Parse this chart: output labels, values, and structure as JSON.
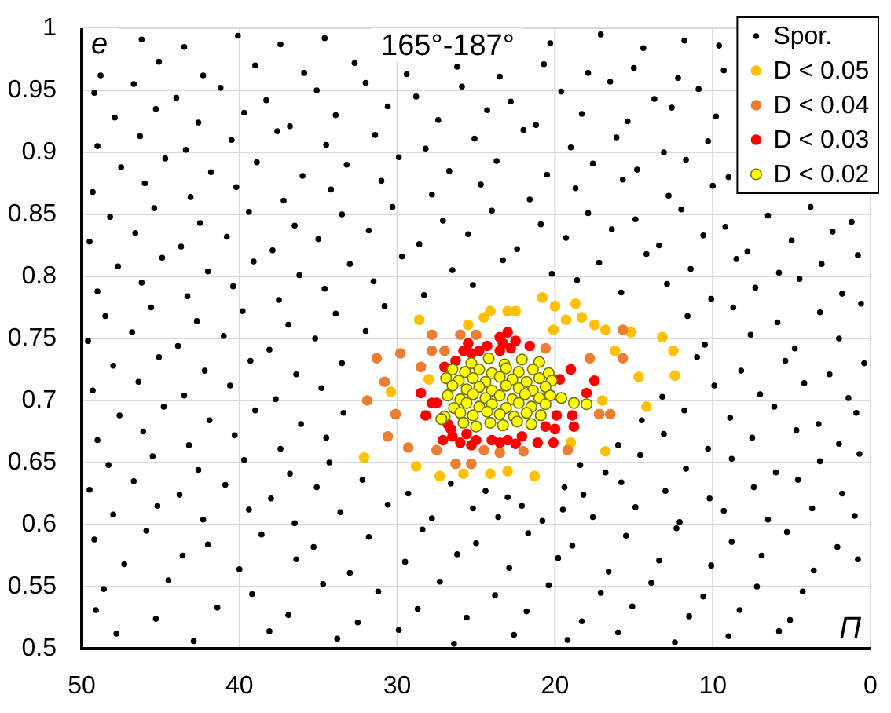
{
  "chart_data": {
    "type": "scatter",
    "title": "165°-187°",
    "xlabel": "Π",
    "ylabel": "e",
    "xlim": [
      50,
      0
    ],
    "xticks": [
      50,
      40,
      30,
      20,
      10,
      0
    ],
    "ylim": [
      0.5,
      1
    ],
    "yticks": [
      0.5,
      0.55,
      0.6,
      0.65,
      0.7,
      0.75,
      0.8,
      0.85,
      0.9,
      0.95,
      1
    ],
    "grid": true,
    "legend": "top right",
    "marker": "circle",
    "series": [
      {
        "name": "Spor.",
        "color": "#000000",
        "x": [
          46.2,
          43.5,
          40.1,
          37.4,
          34.6,
          20.3,
          17.1,
          14.4,
          11.8,
          9.6,
          48.8,
          45.1,
          42.3,
          39.0,
          35.9,
          32.7,
          29.4,
          26.2,
          23.5,
          20.7,
          17.9,
          15.0,
          12.2,
          9.3,
          49.2,
          46.7,
          44.0,
          41.2,
          38.3,
          35.1,
          32.0,
          28.8,
          25.9,
          22.8,
          19.6,
          16.5,
          13.7,
          10.9,
          47.9,
          45.3,
          42.6,
          39.7,
          36.8,
          33.9,
          30.6,
          27.4,
          24.3,
          21.2,
          18.3,
          15.4,
          12.6,
          9.8,
          49.0,
          46.3,
          43.4,
          40.5,
          37.6,
          34.5,
          31.4,
          28.2,
          25.1,
          22.0,
          19.0,
          16.1,
          13.1,
          10.3,
          47.5,
          44.7,
          41.8,
          38.9,
          36.0,
          33.2,
          29.9,
          26.7,
          23.7,
          20.5,
          17.6,
          14.8,
          11.7,
          9.0,
          49.3,
          46.0,
          43.1,
          40.2,
          37.2,
          34.2,
          31.0,
          27.8,
          24.7,
          21.6,
          18.7,
          15.7,
          12.8,
          10.0,
          48.2,
          45.4,
          42.5,
          39.4,
          36.5,
          33.5,
          30.3,
          27.1,
          24.0,
          20.9,
          17.9,
          14.9,
          12.0,
          9.2,
          6.5,
          3.8,
          1.2,
          49.5,
          46.6,
          43.7,
          40.8,
          37.9,
          35.0,
          31.8,
          28.6,
          25.5,
          22.4,
          19.3,
          16.4,
          13.4,
          10.6,
          7.8,
          5.0,
          2.4,
          47.7,
          44.9,
          42.0,
          39.1,
          36.2,
          33.0,
          29.7,
          26.5,
          23.3,
          20.2,
          17.2,
          14.2,
          11.4,
          8.5,
          5.8,
          3.1,
          0.8,
          49.0,
          46.2,
          43.3,
          40.4,
          37.5,
          34.6,
          31.5,
          28.3,
          25.2,
          18.6,
          15.8,
          12.9,
          10.1,
          7.3,
          4.5,
          1.8,
          48.5,
          45.6,
          42.7,
          39.8,
          36.9,
          33.9,
          30.8,
          11.6,
          8.7,
          5.9,
          3.2,
          0.6,
          49.6,
          46.8,
          43.9,
          41.0,
          38.1,
          35.2,
          32.0,
          10.5,
          7.6,
          4.8,
          2.0,
          48.0,
          45.1,
          42.2,
          39.3,
          36.4,
          33.5,
          11.0,
          8.2,
          5.4,
          2.6,
          0.4,
          49.3,
          46.4,
          43.5,
          40.6,
          37.7,
          34.8,
          13.2,
          9.9,
          7.0,
          4.2,
          1.4,
          47.6,
          44.8,
          41.9,
          39.0,
          36.1,
          33.4,
          14.5,
          11.8,
          8.9,
          6.1,
          3.3,
          0.9,
          49.0,
          46.1,
          43.2,
          40.3,
          37.4,
          34.5,
          16.0,
          13.1,
          10.3,
          7.5,
          4.7,
          2.0,
          48.3,
          45.5,
          42.6,
          39.7,
          36.8,
          34.3,
          18.4,
          16.8,
          14.6,
          11.7,
          8.8,
          6.0,
          3.2,
          0.7,
          49.5,
          46.7,
          43.8,
          40.9,
          38.0,
          35.1,
          32.2,
          29.3,
          26.6,
          24.4,
          23.0,
          19.4,
          18.2,
          15.8,
          13.0,
          10.2,
          7.4,
          4.6,
          1.8,
          48.0,
          45.2,
          42.3,
          39.4,
          36.5,
          33.6,
          30.6,
          27.8,
          25.2,
          23.6,
          22.1,
          20.8,
          19.5,
          17.6,
          14.9,
          12.1,
          9.3,
          6.5,
          3.7,
          1.0,
          49.2,
          45.9,
          42.0,
          38.6,
          35.3,
          31.8,
          28.4,
          25.0,
          21.7,
          18.9,
          15.5,
          12.3,
          8.8,
          5.3,
          2.1,
          47.3,
          43.6,
          40.0,
          36.4,
          33.0,
          29.5,
          26.2,
          22.9,
          19.8,
          16.6,
          13.4,
          10.1,
          6.9,
          3.6,
          0.8,
          48.6,
          44.5,
          39.2,
          34.7,
          31.2,
          27.3,
          23.8,
          20.4,
          17.1,
          13.9,
          10.6,
          7.2,
          4.3,
          49.1,
          45.3,
          41.4,
          36.9,
          32.5,
          28.7,
          25.6,
          21.8,
          18.3,
          15.1,
          11.5,
          8.3,
          5.1,
          47.8,
          42.9,
          38.1,
          33.8,
          29.9,
          26.4,
          22.6,
          19.2,
          16.0,
          12.4,
          9.0,
          5.8
        ],
        "values": [
          0.991,
          0.985,
          0.994,
          0.987,
          0.992,
          0.988,
          0.995,
          0.984,
          0.99,
          0.986,
          0.962,
          0.973,
          0.962,
          0.97,
          0.964,
          0.972,
          0.963,
          0.969,
          0.961,
          0.971,
          0.964,
          0.968,
          0.96,
          0.966,
          0.948,
          0.955,
          0.944,
          0.952,
          0.942,
          0.95,
          0.956,
          0.945,
          0.953,
          0.941,
          0.949,
          0.957,
          0.943,
          0.951,
          0.928,
          0.935,
          0.924,
          0.932,
          0.921,
          0.93,
          0.937,
          0.926,
          0.934,
          0.922,
          0.931,
          0.925,
          0.936,
          0.929,
          0.905,
          0.913,
          0.902,
          0.91,
          0.917,
          0.906,
          0.914,
          0.903,
          0.911,
          0.918,
          0.904,
          0.912,
          0.9,
          0.909,
          0.888,
          0.895,
          0.884,
          0.892,
          0.881,
          0.89,
          0.896,
          0.885,
          0.893,
          0.882,
          0.891,
          0.886,
          0.894,
          0.88,
          0.868,
          0.875,
          0.864,
          0.872,
          0.861,
          0.87,
          0.877,
          0.866,
          0.874,
          0.862,
          0.871,
          0.878,
          0.865,
          0.873,
          0.848,
          0.855,
          0.843,
          0.852,
          0.841,
          0.85,
          0.856,
          0.845,
          0.853,
          0.842,
          0.851,
          0.846,
          0.854,
          0.84,
          0.849,
          0.856,
          0.844,
          0.828,
          0.835,
          0.824,
          0.832,
          0.821,
          0.83,
          0.837,
          0.826,
          0.834,
          0.822,
          0.831,
          0.838,
          0.825,
          0.833,
          0.82,
          0.829,
          0.836,
          0.808,
          0.815,
          0.804,
          0.812,
          0.801,
          0.81,
          0.816,
          0.805,
          0.813,
          0.802,
          0.811,
          0.818,
          0.806,
          0.814,
          0.803,
          0.81,
          0.817,
          0.788,
          0.795,
          0.784,
          0.792,
          0.781,
          0.79,
          0.796,
          0.785,
          0.793,
          0.797,
          0.787,
          0.794,
          0.782,
          0.791,
          0.798,
          0.786,
          0.768,
          0.775,
          0.764,
          0.772,
          0.761,
          0.77,
          0.776,
          0.768,
          0.775,
          0.763,
          0.771,
          0.778,
          0.748,
          0.755,
          0.744,
          0.752,
          0.741,
          0.75,
          0.756,
          0.745,
          0.753,
          0.742,
          0.75,
          0.728,
          0.735,
          0.724,
          0.732,
          0.721,
          0.73,
          0.735,
          0.724,
          0.732,
          0.721,
          0.73,
          0.708,
          0.715,
          0.704,
          0.712,
          0.701,
          0.71,
          0.703,
          0.712,
          0.705,
          0.714,
          0.702,
          0.688,
          0.695,
          0.684,
          0.692,
          0.681,
          0.69,
          0.684,
          0.692,
          0.686,
          0.695,
          0.681,
          0.69,
          0.668,
          0.675,
          0.664,
          0.672,
          0.661,
          0.67,
          0.664,
          0.673,
          0.661,
          0.67,
          0.676,
          0.665,
          0.648,
          0.655,
          0.644,
          0.652,
          0.641,
          0.65,
          0.648,
          0.642,
          0.656,
          0.645,
          0.653,
          0.642,
          0.651,
          0.657,
          0.628,
          0.635,
          0.624,
          0.632,
          0.621,
          0.63,
          0.636,
          0.625,
          0.633,
          0.627,
          0.622,
          0.63,
          0.624,
          0.634,
          0.627,
          0.621,
          0.63,
          0.636,
          0.625,
          0.608,
          0.615,
          0.604,
          0.612,
          0.601,
          0.61,
          0.616,
          0.605,
          0.613,
          0.606,
          0.615,
          0.603,
          0.612,
          0.606,
          0.614,
          0.602,
          0.611,
          0.604,
          0.613,
          0.607,
          0.588,
          0.595,
          0.584,
          0.592,
          0.582,
          0.59,
          0.596,
          0.585,
          0.593,
          0.583,
          0.591,
          0.597,
          0.586,
          0.594,
          0.582,
          0.568,
          0.575,
          0.564,
          0.572,
          0.561,
          0.57,
          0.576,
          0.565,
          0.573,
          0.562,
          0.571,
          0.567,
          0.575,
          0.563,
          0.572,
          0.548,
          0.555,
          0.544,
          0.552,
          0.546,
          0.554,
          0.543,
          0.551,
          0.545,
          0.553,
          0.542,
          0.55,
          0.546,
          0.531,
          0.524,
          0.533,
          0.527,
          0.521,
          0.532,
          0.525,
          0.53,
          0.522,
          0.534,
          0.526,
          0.531,
          0.523,
          0.512,
          0.506,
          0.514,
          0.508,
          0.515,
          0.504,
          0.511,
          0.507,
          0.513,
          0.505,
          0.51,
          0.514
        ]
      },
      {
        "name": "D < 0.05",
        "color": "#ffc000",
        "x": [
          28.6,
          25.5,
          24.5,
          24.1,
          23.0,
          22.5,
          20.8,
          20.0,
          18.7,
          19.3,
          18.3,
          20.1,
          17.5,
          16.8,
          15.2,
          13.2,
          12.5,
          16.2,
          14.7,
          12.4,
          17.0,
          14.2,
          16.8,
          21.3,
          23.0,
          24.1,
          25.8,
          27.3,
          28.8,
          32.1,
          30.4,
          28.0,
          19.0
        ],
        "values": [
          0.765,
          0.761,
          0.767,
          0.772,
          0.772,
          0.772,
          0.783,
          0.776,
          0.778,
          0.765,
          0.767,
          0.757,
          0.761,
          0.757,
          0.755,
          0.751,
          0.74,
          0.74,
          0.719,
          0.72,
          0.7,
          0.695,
          0.659,
          0.639,
          0.643,
          0.641,
          0.641,
          0.639,
          0.647,
          0.654,
          0.707,
          0.717,
          0.666
        ]
      },
      {
        "name": "D < 0.04",
        "color": "#ed7d31",
        "x": [
          27.8,
          26.0,
          25.0,
          27.0,
          27.8,
          29.8,
          31.3,
          28.5,
          30.8,
          30.1,
          31.9,
          30.6,
          29.3,
          27.5,
          26.3,
          25.3,
          24.5,
          23.5,
          22.0,
          20.6,
          17.8,
          15.7,
          15.7,
          17.2,
          16.5,
          19.2
        ],
        "values": [
          0.753,
          0.753,
          0.753,
          0.74,
          0.74,
          0.738,
          0.734,
          0.727,
          0.715,
          0.689,
          0.7,
          0.671,
          0.662,
          0.66,
          0.649,
          0.649,
          0.66,
          0.658,
          0.659,
          0.742,
          0.734,
          0.757,
          0.734,
          0.689,
          0.689,
          0.66
        ]
      },
      {
        "name": "D < 0.03",
        "color": "#ff0000",
        "x": [
          23.0,
          23.5,
          22.5,
          25.8,
          25.3,
          24.3,
          21.6,
          27.0,
          28.5,
          27.8,
          19.0,
          17.5,
          18.0,
          26.8,
          26.5,
          25.6,
          25.0,
          24.0,
          23.0,
          22.1,
          20.6,
          20.0,
          18.8,
          21.1,
          27.1,
          26.6,
          23.3,
          26.3,
          19.7,
          20.1,
          26.0,
          25.3,
          23.5,
          22.5,
          27.5,
          23.5,
          22.8,
          25.5,
          24.8,
          28.2,
          19.9,
          18.9
        ],
        "values": [
          0.755,
          0.751,
          0.748,
          0.74,
          0.738,
          0.744,
          0.744,
          0.727,
          0.706,
          0.698,
          0.725,
          0.716,
          0.706,
          0.681,
          0.671,
          0.673,
          0.668,
          0.668,
          0.668,
          0.671,
          0.679,
          0.677,
          0.679,
          0.666,
          0.668,
          0.677,
          0.746,
          0.732,
          0.717,
          0.666,
          0.666,
          0.664,
          0.666,
          0.665,
          0.698,
          0.74,
          0.742,
          0.746,
          0.74,
          0.688,
          0.688,
          0.688
        ]
      },
      {
        "name": "D < 0.02",
        "color": "#ffff00",
        "x": [
          21.0,
          22.1,
          23.2,
          24.2,
          25.3,
          20.4,
          21.4,
          22.3,
          23.1,
          24.0,
          24.8,
          25.7,
          26.5,
          20.2,
          21.0,
          21.8,
          22.7,
          23.5,
          24.4,
          25.2,
          26.1,
          26.9,
          20.6,
          21.4,
          22.3,
          23.1,
          24.0,
          24.8,
          25.6,
          26.5,
          19.6,
          20.3,
          21.0,
          21.9,
          22.7,
          23.5,
          24.4,
          25.2,
          26.0,
          26.8,
          20.6,
          21.5,
          22.3,
          23.1,
          24.0,
          24.8,
          25.6,
          26.4,
          20.9,
          21.8,
          22.6,
          23.5,
          24.3,
          25.2,
          26.0,
          27.0,
          21.5,
          22.4,
          23.3,
          24.1,
          25.0,
          25.8,
          27.2,
          18.8,
          18.0
        ],
        "values": [
          0.731,
          0.733,
          0.729,
          0.734,
          0.73,
          0.722,
          0.725,
          0.723,
          0.726,
          0.722,
          0.725,
          0.723,
          0.725,
          0.716,
          0.718,
          0.715,
          0.717,
          0.719,
          0.715,
          0.718,
          0.716,
          0.718,
          0.711,
          0.708,
          0.71,
          0.712,
          0.708,
          0.711,
          0.709,
          0.712,
          0.702,
          0.704,
          0.702,
          0.705,
          0.701,
          0.704,
          0.702,
          0.705,
          0.701,
          0.704,
          0.697,
          0.695,
          0.698,
          0.694,
          0.697,
          0.695,
          0.698,
          0.694,
          0.688,
          0.69,
          0.687,
          0.689,
          0.691,
          0.688,
          0.69,
          0.687,
          0.681,
          0.683,
          0.68,
          0.682,
          0.679,
          0.682,
          0.685,
          0.698,
          0.697
        ]
      }
    ]
  }
}
